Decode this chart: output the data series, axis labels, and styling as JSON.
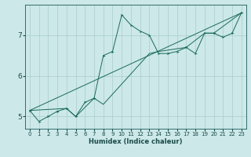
{
  "xlabel": "Humidex (Indice chaleur)",
  "bg_color": "#cce8e8",
  "grid_color": "#aacccc",
  "line_color": "#1a6a5a",
  "xlim": [
    -0.5,
    23.5
  ],
  "ylim": [
    4.7,
    7.75
  ],
  "yticks": [
    5,
    6,
    7
  ],
  "xticks": [
    0,
    1,
    2,
    3,
    4,
    5,
    6,
    7,
    8,
    9,
    10,
    11,
    12,
    13,
    14,
    15,
    16,
    17,
    18,
    19,
    20,
    21,
    22,
    23
  ],
  "curve1_x": [
    0,
    1,
    2,
    3,
    4,
    5,
    6,
    7,
    8,
    9,
    10,
    11,
    12,
    13,
    14,
    15,
    16,
    17,
    18,
    19,
    20,
    21,
    22,
    23
  ],
  "curve1_y": [
    5.15,
    4.88,
    5.0,
    5.13,
    5.2,
    5.0,
    5.35,
    5.45,
    6.5,
    6.6,
    7.5,
    7.25,
    7.1,
    7.0,
    6.55,
    6.55,
    6.6,
    6.7,
    6.55,
    7.05,
    7.05,
    6.95,
    7.05,
    7.55
  ],
  "curve2_x": [
    0,
    4,
    5,
    7,
    8,
    13,
    14,
    17,
    19,
    20,
    23
  ],
  "curve2_y": [
    5.15,
    5.2,
    5.0,
    5.45,
    5.3,
    6.55,
    6.6,
    6.7,
    7.05,
    7.05,
    7.55
  ],
  "curve3_x": [
    0,
    23
  ],
  "curve3_y": [
    5.15,
    7.55
  ]
}
